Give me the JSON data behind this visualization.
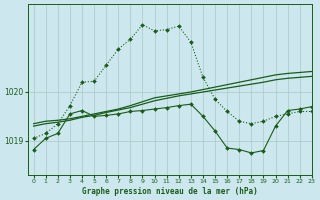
{
  "title": "Graphe pression niveau de la mer (hPa)",
  "background_color": "#cce8ee",
  "grid_color": "#b0cccc",
  "line_color": "#1a5c1a",
  "xlim": [
    -0.5,
    23
  ],
  "ylim": [
    1018.3,
    1021.8
  ],
  "yticks": [
    1019,
    1020
  ],
  "xticks": [
    0,
    1,
    2,
    3,
    4,
    5,
    6,
    7,
    8,
    9,
    10,
    11,
    12,
    13,
    14,
    15,
    16,
    17,
    18,
    19,
    20,
    21,
    22,
    23
  ],
  "series_smooth1": {
    "x": [
      0,
      1,
      2,
      3,
      4,
      5,
      6,
      7,
      8,
      9,
      10,
      11,
      12,
      13,
      14,
      15,
      16,
      17,
      18,
      19,
      20,
      21,
      22,
      23
    ],
    "y": [
      1019.35,
      1019.4,
      1019.42,
      1019.45,
      1019.5,
      1019.55,
      1019.6,
      1019.65,
      1019.72,
      1019.8,
      1019.88,
      1019.92,
      1019.96,
      1020.0,
      1020.05,
      1020.1,
      1020.15,
      1020.2,
      1020.25,
      1020.3,
      1020.35,
      1020.38,
      1020.4,
      1020.42
    ]
  },
  "series_smooth2": {
    "x": [
      0,
      1,
      2,
      3,
      4,
      5,
      6,
      7,
      8,
      9,
      10,
      11,
      12,
      13,
      14,
      15,
      16,
      17,
      18,
      19,
      20,
      21,
      22,
      23
    ],
    "y": [
      1019.3,
      1019.35,
      1019.38,
      1019.42,
      1019.48,
      1019.52,
      1019.58,
      1019.63,
      1019.68,
      1019.75,
      1019.82,
      1019.87,
      1019.92,
      1019.96,
      1020.0,
      1020.04,
      1020.08,
      1020.12,
      1020.16,
      1020.2,
      1020.25,
      1020.28,
      1020.3,
      1020.32
    ]
  },
  "series_dotted": {
    "x": [
      0,
      1,
      2,
      3,
      4,
      5,
      6,
      7,
      8,
      9,
      10,
      11,
      12,
      13,
      14,
      15,
      16,
      17,
      18,
      19,
      20,
      21,
      22,
      23
    ],
    "y": [
      1019.05,
      1019.15,
      1019.35,
      1019.72,
      1020.2,
      1020.22,
      1020.55,
      1020.88,
      1021.08,
      1021.38,
      1021.25,
      1021.28,
      1021.35,
      1021.02,
      1020.3,
      1019.85,
      1019.6,
      1019.4,
      1019.35,
      1019.4,
      1019.5,
      1019.55,
      1019.6,
      1019.6
    ]
  },
  "series_solid_markers": {
    "x": [
      0,
      1,
      2,
      3,
      4,
      5,
      6,
      7,
      8,
      9,
      10,
      11,
      12,
      13,
      14,
      15,
      16,
      17,
      18,
      19,
      20,
      21,
      22,
      23
    ],
    "y": [
      1018.82,
      1019.05,
      1019.15,
      1019.55,
      1019.62,
      1019.5,
      1019.52,
      1019.55,
      1019.6,
      1019.62,
      1019.65,
      1019.68,
      1019.72,
      1019.75,
      1019.5,
      1019.2,
      1018.85,
      1018.82,
      1018.75,
      1018.8,
      1019.3,
      1019.62,
      1019.65,
      1019.7
    ]
  }
}
